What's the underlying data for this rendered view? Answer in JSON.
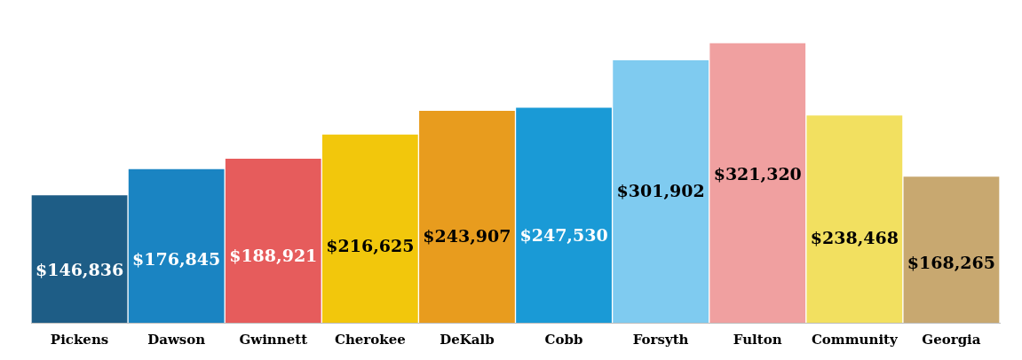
{
  "chart_data": {
    "type": "bar",
    "categories": [
      "Pickens",
      "Dawson",
      "Gwinnett",
      "Cherokee",
      "DeKalb",
      "Cobb",
      "Forsyth",
      "Fulton",
      "Community",
      "Georgia"
    ],
    "values": [
      146836,
      176845,
      188921,
      216625,
      243907,
      247530,
      301902,
      321320,
      238468,
      168265
    ],
    "colors": [
      "#1e5d86",
      "#1a84c2",
      "#e65c5c",
      "#f2c70c",
      "#e89c1e",
      "#1a9ad6",
      "#7fcbf0",
      "#f0a0a0",
      "#f2e060",
      "#c8a870"
    ],
    "value_labels": [
      "$146,836",
      "$176,845",
      "$188,921",
      "$216,625",
      "$243,907",
      "$247,530",
      "$301,902",
      "$321,320",
      "$238,468",
      "$168,265"
    ],
    "grid": false,
    "legend": false
  }
}
